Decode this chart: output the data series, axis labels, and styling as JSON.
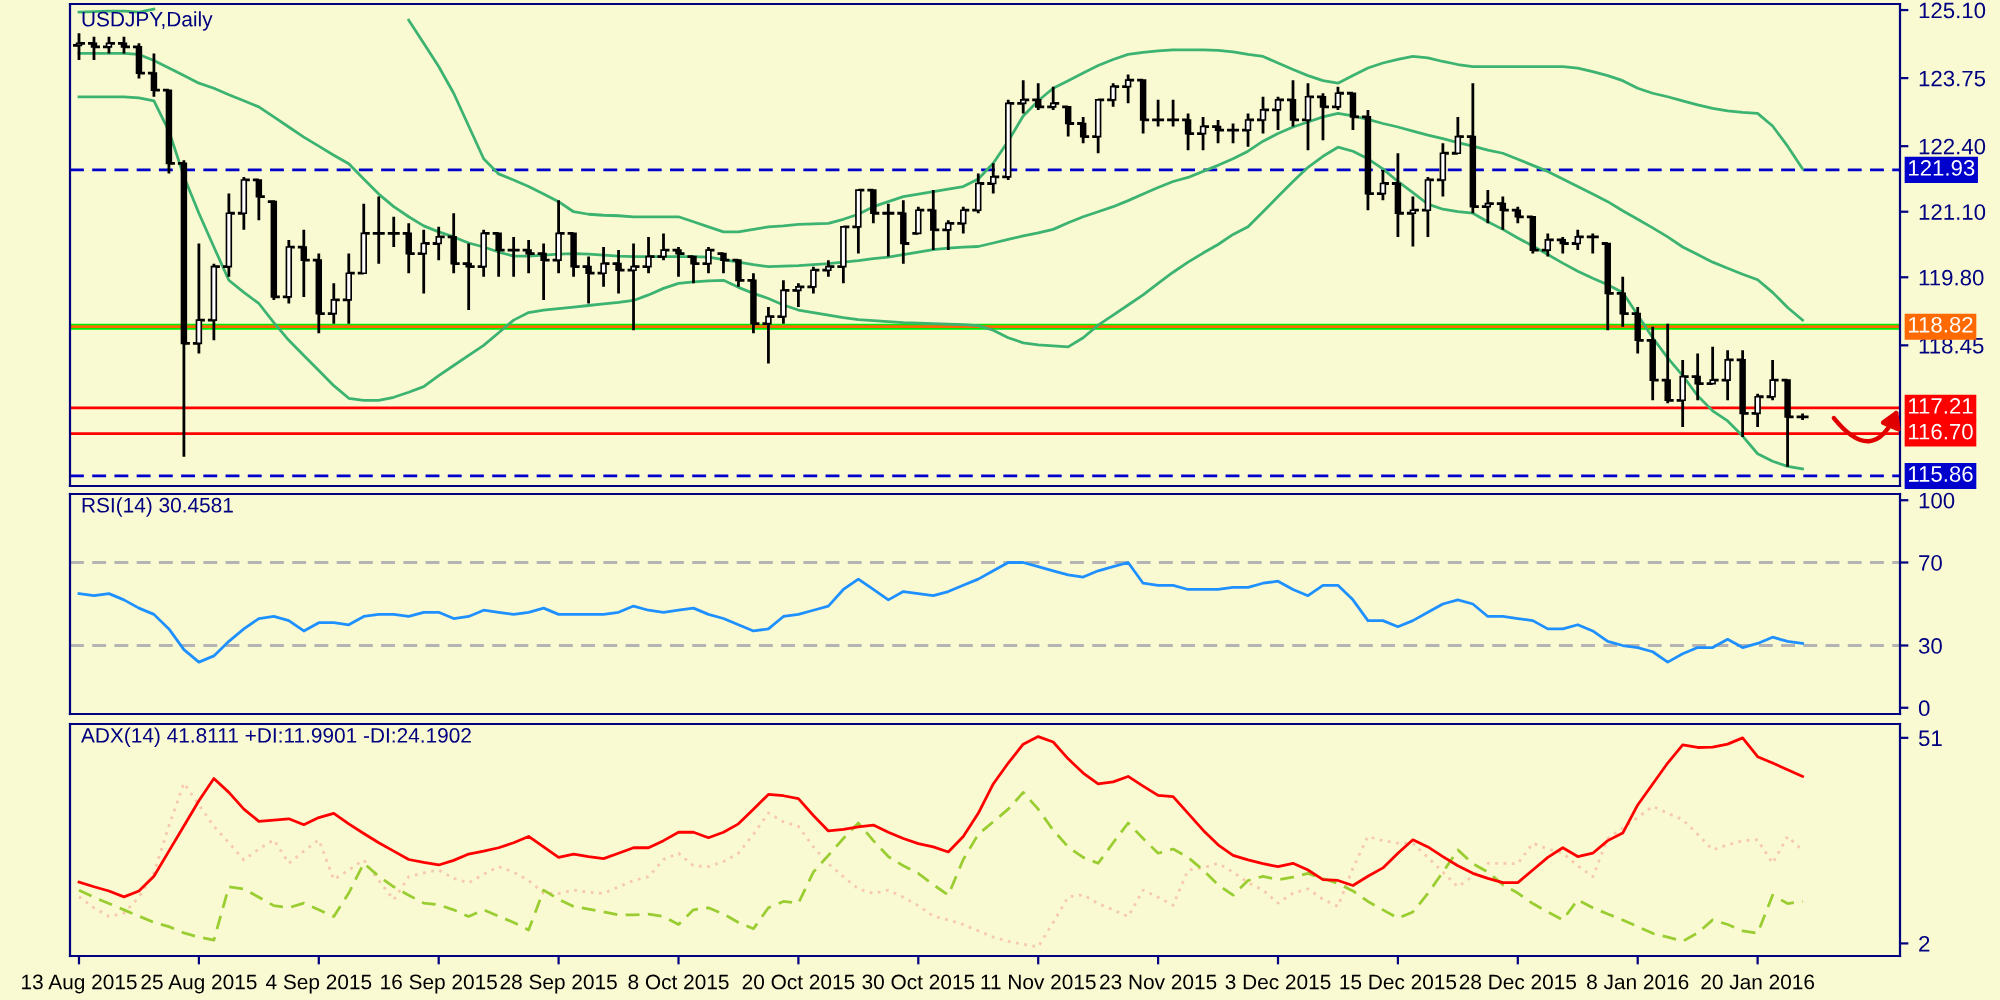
{
  "chart_data": [
    {
      "type": "candlestick",
      "title": "USDJPY,Daily",
      "tick_labels": "y",
      "ohlc": [
        [
          124.4,
          124.64,
          124.11,
          124.44
        ],
        [
          124.44,
          124.57,
          124.11,
          124.37
        ],
        [
          124.37,
          124.57,
          124.24,
          124.44
        ],
        [
          124.44,
          124.57,
          124.24,
          124.37
        ],
        [
          124.37,
          124.44,
          123.74,
          123.85
        ],
        [
          123.85,
          124.24,
          123.38,
          123.51
        ],
        [
          123.51,
          123.51,
          121.86,
          122.06
        ],
        [
          122.06,
          122.12,
          116.24,
          118.49
        ],
        [
          118.49,
          120.47,
          118.29,
          118.95
        ],
        [
          118.95,
          120.07,
          118.55,
          120.01
        ],
        [
          120.01,
          121.46,
          119.81,
          121.07
        ],
        [
          121.07,
          121.79,
          120.74,
          121.73
        ],
        [
          121.73,
          121.73,
          120.93,
          121.4
        ],
        [
          121.3,
          121.33,
          119.35,
          119.41
        ],
        [
          119.41,
          120.54,
          119.28,
          120.4
        ],
        [
          120.4,
          120.74,
          119.41,
          120.14
        ],
        [
          120.14,
          120.27,
          118.69,
          119.08
        ],
        [
          119.08,
          119.68,
          118.88,
          119.35
        ],
        [
          119.35,
          120.27,
          118.88,
          119.88
        ],
        [
          119.88,
          121.26,
          119.88,
          120.67
        ],
        [
          120.67,
          121.4,
          120.07,
          120.67
        ],
        [
          120.67,
          121.0,
          120.4,
          120.67
        ],
        [
          120.67,
          120.87,
          119.88,
          120.27
        ],
        [
          120.27,
          120.74,
          119.48,
          120.47
        ],
        [
          120.47,
          120.8,
          120.14,
          120.6
        ],
        [
          120.6,
          121.07,
          119.88,
          120.07
        ],
        [
          120.07,
          120.47,
          119.15,
          120.01
        ],
        [
          120.01,
          120.74,
          119.81,
          120.67
        ],
        [
          120.67,
          120.67,
          119.81,
          120.34
        ],
        [
          120.34,
          120.6,
          119.81,
          120.34
        ],
        [
          120.34,
          120.54,
          119.88,
          120.27
        ],
        [
          120.27,
          120.47,
          119.35,
          120.14
        ],
        [
          120.14,
          121.33,
          119.88,
          120.67
        ],
        [
          120.67,
          120.67,
          119.81,
          120.01
        ],
        [
          120.01,
          120.21,
          119.28,
          119.88
        ],
        [
          119.88,
          120.4,
          119.61,
          120.07
        ],
        [
          120.07,
          120.34,
          119.48,
          119.94
        ],
        [
          119.94,
          120.47,
          118.75,
          120.01
        ],
        [
          120.01,
          120.6,
          119.88,
          120.21
        ],
        [
          120.21,
          120.67,
          120.14,
          120.34
        ],
        [
          120.34,
          120.4,
          119.81,
          120.27
        ],
        [
          120.21,
          120.21,
          119.68,
          120.07
        ],
        [
          120.07,
          120.4,
          119.88,
          120.34
        ],
        [
          120.27,
          120.27,
          119.88,
          120.14
        ],
        [
          120.14,
          120.14,
          119.61,
          119.74
        ],
        [
          119.74,
          119.88,
          118.69,
          118.88
        ],
        [
          118.88,
          119.21,
          118.09,
          119.02
        ],
        [
          119.02,
          119.74,
          118.88,
          119.54
        ],
        [
          119.54,
          119.68,
          119.21,
          119.61
        ],
        [
          119.61,
          120.01,
          119.48,
          119.94
        ],
        [
          119.94,
          120.14,
          119.81,
          120.01
        ],
        [
          120.01,
          120.8,
          119.68,
          120.8
        ],
        [
          120.8,
          121.53,
          120.27,
          121.53
        ],
        [
          121.53,
          121.53,
          120.87,
          121.07
        ],
        [
          121.07,
          121.26,
          120.21,
          121.07
        ],
        [
          121.07,
          121.33,
          120.07,
          120.47
        ],
        [
          120.67,
          121.2,
          120.67,
          121.13
        ],
        [
          121.13,
          121.53,
          120.34,
          120.74
        ],
        [
          120.74,
          120.93,
          120.34,
          120.87
        ],
        [
          120.87,
          121.2,
          120.67,
          121.13
        ],
        [
          121.13,
          121.86,
          121.07,
          121.66
        ],
        [
          121.66,
          122.06,
          121.46,
          121.79
        ],
        [
          121.79,
          123.32,
          121.73,
          123.25
        ],
        [
          123.25,
          123.71,
          123.05,
          123.32
        ],
        [
          123.32,
          123.65,
          123.12,
          123.18
        ],
        [
          123.18,
          123.58,
          123.12,
          123.25
        ],
        [
          123.18,
          123.18,
          122.59,
          122.85
        ],
        [
          122.85,
          122.98,
          122.46,
          122.59
        ],
        [
          122.59,
          123.32,
          122.26,
          123.32
        ],
        [
          123.32,
          123.65,
          123.18,
          123.58
        ],
        [
          123.58,
          123.82,
          123.25,
          123.71
        ],
        [
          123.71,
          123.71,
          122.65,
          122.92
        ],
        [
          122.92,
          123.32,
          122.79,
          122.92
        ],
        [
          122.92,
          123.32,
          122.79,
          122.92
        ],
        [
          122.92,
          123.05,
          122.32,
          122.65
        ],
        [
          122.65,
          122.98,
          122.32,
          122.79
        ],
        [
          122.79,
          122.92,
          122.46,
          122.72
        ],
        [
          122.72,
          122.85,
          122.46,
          122.72
        ],
        [
          122.72,
          123.05,
          122.39,
          122.92
        ],
        [
          122.92,
          123.38,
          122.65,
          123.12
        ],
        [
          123.12,
          123.38,
          122.72,
          123.32
        ],
        [
          123.32,
          123.71,
          122.79,
          122.92
        ],
        [
          122.92,
          123.65,
          122.32,
          123.38
        ],
        [
          123.38,
          123.45,
          122.52,
          123.18
        ],
        [
          123.18,
          123.58,
          123.12,
          123.45
        ],
        [
          123.45,
          123.45,
          122.72,
          122.98
        ],
        [
          122.98,
          123.12,
          121.13,
          121.46
        ],
        [
          121.46,
          121.93,
          121.33,
          121.66
        ],
        [
          121.66,
          122.26,
          120.6,
          121.07
        ],
        [
          121.07,
          121.4,
          120.41,
          121.13
        ],
        [
          121.13,
          121.79,
          120.6,
          121.73
        ],
        [
          121.73,
          122.46,
          121.4,
          122.26
        ],
        [
          122.26,
          122.98,
          122.26,
          122.59
        ],
        [
          122.59,
          123.65,
          121.07,
          121.2
        ],
        [
          121.2,
          121.53,
          120.87,
          121.26
        ],
        [
          121.26,
          121.4,
          120.74,
          121.13
        ],
        [
          121.13,
          121.2,
          120.87,
          121.0
        ],
        [
          121.0,
          121.0,
          120.27,
          120.34
        ],
        [
          120.34,
          120.67,
          120.21,
          120.54
        ],
        [
          120.54,
          120.6,
          120.27,
          120.47
        ],
        [
          120.47,
          120.74,
          120.34,
          120.6
        ],
        [
          120.6,
          120.67,
          120.27,
          120.6
        ],
        [
          120.47,
          120.47,
          118.75,
          119.48
        ],
        [
          119.48,
          119.81,
          118.82,
          119.08
        ],
        [
          119.08,
          119.21,
          118.29,
          118.55
        ],
        [
          118.55,
          118.82,
          117.36,
          117.76
        ],
        [
          117.76,
          118.88,
          117.3,
          117.36
        ],
        [
          117.36,
          118.16,
          116.83,
          117.83
        ],
        [
          117.83,
          118.29,
          117.36,
          117.69
        ],
        [
          117.69,
          118.42,
          117.69,
          117.76
        ],
        [
          117.76,
          118.35,
          117.36,
          118.16
        ],
        [
          118.16,
          118.35,
          116.63,
          117.1
        ],
        [
          117.1,
          117.49,
          116.83,
          117.43
        ],
        [
          117.43,
          118.16,
          117.36,
          117.76
        ],
        [
          117.76,
          117.76,
          116.04,
          117.03
        ],
        [
          117.03,
          117.1,
          116.97,
          117.03
        ]
      ],
      "series": [
        {
          "type": "line",
          "color": "#3cb371",
          "values": [
            125.06,
            125.07,
            125.08,
            125.08,
            125.06,
            125.12,
            null,
            null,
            null,
            null,
            null,
            null,
            null,
            null,
            null,
            null,
            null,
            null,
            null,
            null,
            null,
            null,
            124.9,
            124.44,
            123.98,
            123.45,
            122.8,
            122.15,
            121.85,
            121.73,
            121.6,
            121.45,
            121.3,
            121.1,
            121.05,
            121.03,
            121.02,
            121.0,
            121.0,
            121.0,
            121.0,
            120.9,
            120.8,
            120.7,
            120.7,
            120.75,
            120.8,
            120.82,
            120.85,
            120.86,
            120.87,
            120.95,
            121.05,
            121.2,
            121.3,
            121.4,
            121.45,
            121.5,
            121.55,
            121.6,
            121.75,
            122.06,
            122.5,
            123.0,
            123.3,
            123.55,
            123.7,
            123.85,
            124.0,
            124.12,
            124.22,
            124.26,
            124.29,
            124.31,
            124.31,
            124.31,
            124.3,
            124.27,
            124.22,
            124.18,
            124.05,
            123.92,
            123.8,
            123.7,
            123.65,
            123.8,
            123.95,
            124.05,
            124.12,
            124.18,
            124.15,
            124.08,
            124.02,
            123.98,
            123.98,
            123.98,
            123.98,
            123.98,
            123.98,
            123.98,
            123.95,
            123.88,
            123.8,
            123.7,
            123.55,
            123.45,
            123.38,
            123.3,
            123.22,
            123.15,
            123.1,
            123.07,
            123.05,
            122.8,
            122.4,
            121.95
          ]
        },
        {
          "type": "line",
          "color": "#3cb371",
          "values": [
            124.24,
            124.24,
            124.24,
            124.24,
            124.22,
            124.1,
            123.95,
            123.8,
            123.65,
            123.55,
            123.42,
            123.3,
            123.18,
            122.98,
            122.78,
            122.58,
            122.4,
            122.22,
            122.05,
            121.75,
            121.45,
            121.2,
            121.0,
            120.82,
            120.7,
            120.6,
            120.48,
            120.4,
            120.3,
            120.22,
            120.22,
            120.24,
            120.26,
            120.27,
            120.26,
            120.24,
            120.22,
            120.21,
            120.21,
            120.21,
            120.21,
            120.21,
            120.2,
            120.15,
            120.1,
            120.05,
            120.01,
            120.02,
            120.03,
            120.05,
            120.07,
            120.1,
            120.13,
            120.17,
            120.2,
            120.25,
            120.3,
            120.35,
            120.38,
            120.4,
            120.41,
            120.48,
            120.55,
            120.62,
            120.68,
            120.75,
            120.88,
            121.0,
            121.1,
            121.2,
            121.32,
            121.45,
            121.58,
            121.7,
            121.78,
            121.9,
            122.02,
            122.15,
            122.3,
            122.5,
            122.65,
            122.78,
            122.88,
            122.98,
            123.05,
            123.0,
            122.93,
            122.85,
            122.78,
            122.7,
            122.62,
            122.55,
            122.47,
            122.4,
            122.32,
            122.26,
            122.14,
            122.02,
            121.9,
            121.75,
            121.6,
            121.45,
            121.3,
            121.12,
            120.95,
            120.78,
            120.6,
            120.4,
            120.25,
            120.1,
            119.98,
            119.86,
            119.75,
            119.5,
            119.2,
            118.95
          ]
        },
        {
          "type": "line",
          "color": "#3cb371",
          "values": [
            123.38,
            123.38,
            123.38,
            123.38,
            123.36,
            123.3,
            122.7,
            121.8,
            121.07,
            120.4,
            119.74,
            119.5,
            119.28,
            118.9,
            118.55,
            118.25,
            117.95,
            117.65,
            117.4,
            117.36,
            117.36,
            117.42,
            117.52,
            117.63,
            117.85,
            118.05,
            118.25,
            118.45,
            118.7,
            118.95,
            119.1,
            119.15,
            119.18,
            119.21,
            119.24,
            119.27,
            119.3,
            119.34,
            119.45,
            119.58,
            119.68,
            119.71,
            119.73,
            119.74,
            119.6,
            119.48,
            119.38,
            119.25,
            119.15,
            119.1,
            119.05,
            119.0,
            118.96,
            118.94,
            118.92,
            118.9,
            118.89,
            118.88,
            118.87,
            118.86,
            118.84,
            118.75,
            118.6,
            118.5,
            118.46,
            118.44,
            118.42,
            118.6,
            118.85,
            119.05,
            119.25,
            119.45,
            119.68,
            119.9,
            120.1,
            120.28,
            120.45,
            120.65,
            120.8,
            121.1,
            121.4,
            121.7,
            121.98,
            122.2,
            122.38,
            122.3,
            122.15,
            121.95,
            121.7,
            121.48,
            121.25,
            121.15,
            121.1,
            121.07,
            120.9,
            120.75,
            120.58,
            120.42,
            120.25,
            120.08,
            119.92,
            119.78,
            119.65,
            119.5,
            119.05,
            118.6,
            118.2,
            117.85,
            117.45,
            117.15,
            116.95,
            116.65,
            116.3,
            116.15,
            116.05,
            116.0
          ]
        }
      ],
      "ylim": [
        115.66,
        125.22
      ],
      "yticks": [
        {
          "value": 125.1,
          "label": "125.10"
        },
        123.75,
        {
          "value": 122.4,
          "label": "122.40"
        },
        {
          "value": 121.1,
          "label": "121.10"
        },
        {
          "value": 119.8,
          "label": "119.80"
        },
        118.45
      ],
      "bands": [
        {
          "axis": "y",
          "from": 118.76,
          "to": 118.88,
          "color": "#00ee00"
        }
      ],
      "ref_lines": [
        {
          "axis": "y",
          "value": 121.93,
          "label": "121.93",
          "color": "#0000cd",
          "line_style": "dashed"
        },
        {
          "axis": "y",
          "value": 118.82,
          "label": "118.82",
          "color": "#ff6a00",
          "line_style": "solid"
        },
        {
          "axis": "y",
          "value": 117.21,
          "label": "117.21",
          "color": "#ff0000",
          "line_style": "solid"
        },
        {
          "axis": "y",
          "value": 116.7,
          "label": "116.70",
          "color": "#ff0000",
          "line_style": "solid"
        },
        {
          "axis": "y",
          "value": 115.86,
          "label": "115.86",
          "color": "#0000cd",
          "line_style": "dashed"
        }
      ]
    },
    {
      "type": "line",
      "title": "RSI(14) 30.4581",
      "tick_labels": "y",
      "series": [
        {
          "color": "#1e90ff",
          "values": [
            55,
            54,
            55,
            52,
            48,
            45,
            38,
            28,
            22,
            25,
            32,
            38,
            43,
            44,
            42,
            37,
            41,
            41,
            40,
            44,
            45,
            45,
            44,
            46,
            46,
            43,
            44,
            47,
            46,
            45,
            46,
            48,
            45,
            45,
            45,
            45,
            46,
            49,
            47,
            46,
            47,
            48,
            45,
            43,
            40,
            37,
            38,
            44,
            45,
            47,
            49,
            57,
            62,
            57,
            52,
            56,
            55,
            54,
            56,
            59,
            62,
            66,
            70,
            70,
            68,
            66,
            64,
            63,
            66,
            68,
            70,
            60,
            59,
            59,
            57,
            57,
            57,
            58,
            58,
            60,
            61,
            57,
            54,
            59,
            59,
            52,
            42,
            42,
            39,
            42,
            46,
            50,
            52,
            50,
            44,
            44,
            43,
            42,
            38,
            38,
            40,
            37,
            32,
            30,
            29,
            27,
            22,
            26,
            29,
            29,
            33,
            29,
            31,
            34,
            32,
            31
          ]
        }
      ],
      "ylim": [
        -3,
        103
      ],
      "yticks": [
        0,
        30,
        70,
        100
      ],
      "ref_lines": [
        {
          "axis": "y",
          "value": 70,
          "color": "#b4b4b4",
          "line_style": "dashed"
        },
        {
          "axis": "y",
          "value": 30,
          "color": "#b4b4b4",
          "line_style": "dashed"
        }
      ]
    },
    {
      "type": "line",
      "title": "ADX(14) 41.8111 +DI:11.9901 -DI:24.1902",
      "categories": [
        "13 Aug 2015",
        null,
        null,
        null,
        null,
        null,
        null,
        null,
        "25 Aug 2015",
        null,
        null,
        null,
        null,
        null,
        null,
        null,
        "4 Sep 2015",
        null,
        null,
        null,
        null,
        null,
        null,
        null,
        "16 Sep 2015",
        null,
        null,
        null,
        null,
        null,
        null,
        null,
        "28 Sep 2015",
        null,
        null,
        null,
        null,
        null,
        null,
        null,
        "8 Oct 2015",
        null,
        null,
        null,
        null,
        null,
        null,
        null,
        "20 Oct 2015",
        null,
        null,
        null,
        null,
        null,
        null,
        null,
        "30 Oct 2015",
        null,
        null,
        null,
        null,
        null,
        null,
        null,
        "11 Nov 2015",
        null,
        null,
        null,
        null,
        null,
        null,
        null,
        "23 Nov 2015",
        null,
        null,
        null,
        null,
        null,
        null,
        null,
        "3 Dec 2015",
        null,
        null,
        null,
        null,
        null,
        null,
        null,
        "15 Dec 2015",
        null,
        null,
        null,
        null,
        null,
        null,
        null,
        "28 Dec 2015",
        null,
        null,
        null,
        null,
        null,
        null,
        null,
        "8 Jan 2016",
        null,
        null,
        null,
        null,
        null,
        null,
        null,
        "20 Jan 2016",
        null,
        null,
        null
      ],
      "series": [
        {
          "color": "#f5c9ad",
          "line_style": "dotted",
          "values": [
            13.1,
            10.5,
            8.4,
            9.2,
            13,
            18.8,
            30,
            40.2,
            35,
            29.9,
            26,
            21.9,
            24.5,
            26.7,
            21.1,
            24,
            26.7,
            17.2,
            19.5,
            21.9,
            17,
            12.4,
            17.9,
            18.8,
            19.5,
            17.5,
            16.4,
            18.5,
            20.3,
            19,
            17,
            14,
            13.9,
            14.7,
            14.2,
            13.9,
            15.5,
            17,
            17.9,
            22,
            23.5,
            20.5,
            20.3,
            21.5,
            23.5,
            28,
            33.1,
            31,
            29.9,
            25,
            21,
            17.9,
            15,
            13.9,
            14.7,
            13,
            11,
            8.5,
            7.6,
            6.5,
            5,
            3.5,
            2.5,
            1.8,
            1.2,
            7,
            13.1,
            13.6,
            11.5,
            10,
            8.4,
            14.7,
            13,
            11.1,
            19.5,
            20,
            21.1,
            19,
            16.5,
            14.7,
            11.6,
            14,
            15,
            12.5,
            10.8,
            20,
            27.5,
            26.5,
            25.9,
            25.9,
            22.5,
            19,
            15.5,
            18,
            21.1,
            21.1,
            21,
            25.9,
            24.5,
            23.5,
            20.5,
            17.9,
            27,
            29.5,
            32,
            34.7,
            33,
            31.5,
            28,
            24.3,
            25.5,
            26.5,
            26.7,
            21.1,
            27.5,
            24.2
          ]
        },
        {
          "color": "#9acd32",
          "line_style": "dashed",
          "values": [
            14.7,
            13,
            11.5,
            10,
            8.5,
            7,
            6,
            4.5,
            3.5,
            2.8,
            15.5,
            15,
            13,
            11,
            10.5,
            11.6,
            10,
            8.4,
            14,
            21.1,
            18,
            15.5,
            13.5,
            11.6,
            11.2,
            10,
            8.4,
            10,
            8.5,
            7,
            5.2,
            14.7,
            12.5,
            10.8,
            10.2,
            9.5,
            8.8,
            8.8,
            9,
            8.4,
            6.5,
            10,
            10.5,
            9,
            7,
            5.5,
            10.5,
            12,
            11.6,
            19,
            23,
            27,
            30.7,
            26.5,
            22.7,
            20.5,
            18.7,
            16,
            13.5,
            22,
            28,
            31,
            34,
            38,
            34,
            29,
            25,
            22.5,
            21.1,
            26,
            30.7,
            27,
            23.5,
            24.5,
            22.5,
            19.5,
            16,
            13.5,
            17,
            18,
            17.2,
            17.8,
            18.7,
            17.5,
            16.3,
            14.5,
            12,
            10,
            8,
            9.5,
            13.9,
            19,
            24.3,
            21,
            19,
            16,
            14,
            11.5,
            9.5,
            7.6,
            12.4,
            10.5,
            9,
            7.6,
            6,
            4.4,
            3.5,
            2.5,
            4.5,
            7.6,
            6.5,
            5,
            4.4,
            13.5,
            11.5,
            12.0
          ]
        },
        {
          "color": "#ff0000",
          "line_style": "solid",
          "values": [
            16.6,
            15.5,
            14.5,
            13.1,
            14.5,
            18,
            24,
            30,
            36,
            41.3,
            38,
            34,
            31.1,
            31.4,
            31.7,
            30.3,
            32,
            33,
            30.5,
            28.2,
            26,
            24,
            22,
            21.3,
            20.7,
            21.8,
            23.3,
            24,
            24.8,
            26,
            27.5,
            25,
            22.5,
            23.3,
            22.7,
            22.2,
            23.5,
            24.8,
            24.8,
            26.5,
            28.5,
            28.5,
            27.2,
            28.5,
            30.5,
            34,
            37.5,
            37.2,
            36.5,
            32.5,
            28.8,
            29.2,
            29.8,
            30.2,
            28.5,
            27,
            25.8,
            25,
            23.8,
            27.5,
            33,
            40,
            45,
            49.5,
            51.3,
            50,
            46,
            42.6,
            40,
            40.5,
            41.8,
            39.5,
            37.3,
            37,
            33,
            29,
            25.5,
            23,
            21.9,
            21,
            20.3,
            21.1,
            19.5,
            17.2,
            17,
            15.8,
            18,
            20,
            23.5,
            26.7,
            25,
            22.7,
            20.5,
            18.7,
            17.5,
            16.5,
            16.5,
            19.5,
            22.5,
            24.8,
            22.7,
            23.5,
            26.5,
            28.3,
            35,
            40,
            45,
            49.3,
            48.7,
            48.8,
            49.5,
            51,
            46.5,
            45,
            43.4,
            41.8
          ]
        }
      ],
      "ylim": [
        -1,
        54.3
      ],
      "yticks": [
        2,
        51
      ]
    }
  ]
}
